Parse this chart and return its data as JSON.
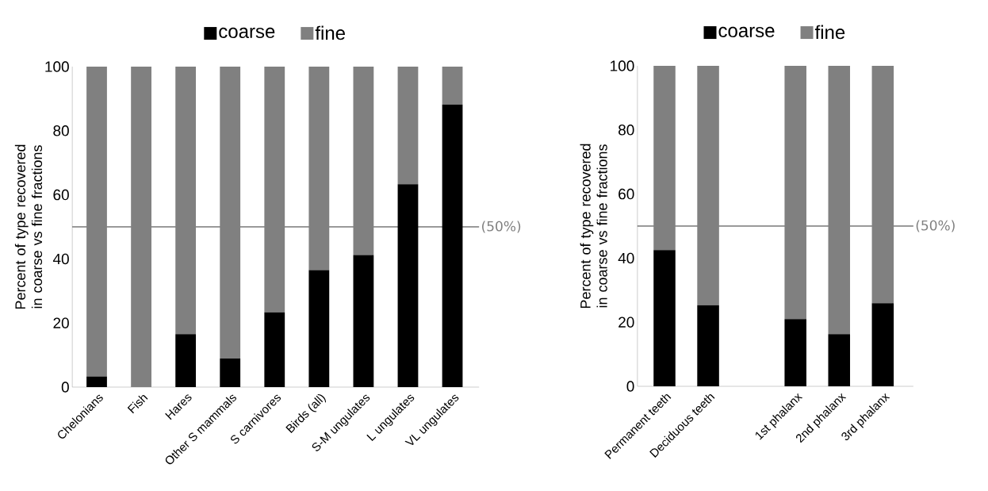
{
  "chart_data": [
    {
      "type": "bar",
      "stacked": true,
      "ylabel": "Percent of type recovered in coarse vs fine fractions",
      "categories": [
        "Chelonians",
        "Fish",
        "Hares",
        "Other S mammals",
        "S carnivores",
        "Birds (all)",
        "S-M ungulates",
        "L ungulates",
        "VL ungulates"
      ],
      "series": [
        {
          "name": "coarse",
          "color": "#000000",
          "values": [
            3.3,
            0,
            16.5,
            8.9,
            23.3,
            36.5,
            41.2,
            63.3,
            88.2
          ]
        },
        {
          "name": "fine",
          "color": "#808080",
          "values": [
            96.7,
            100,
            83.5,
            91.1,
            76.7,
            63.5,
            58.8,
            36.7,
            11.8
          ]
        }
      ],
      "ylim": [
        0,
        100
      ],
      "yticks": [
        0,
        20,
        40,
        60,
        80,
        100
      ],
      "legend": "top",
      "ref_lines": [
        {
          "axis": "y",
          "value": 50,
          "label": "(50%)",
          "color": "#000000"
        }
      ]
    },
    {
      "type": "bar",
      "stacked": true,
      "ylabel": "Percent of type recovered in coarse vs fine fractions",
      "categories": [
        "Permanent teeth",
        "Deciduous teeth",
        null,
        "1st phalanx",
        "2nd phalanx",
        "3rd phalanx"
      ],
      "series": [
        {
          "name": "coarse",
          "color": "#000000",
          "values": [
            42.5,
            25.3,
            null,
            21.0,
            16.3,
            25.9
          ]
        },
        {
          "name": "fine",
          "color": "#808080",
          "values": [
            57.5,
            74.7,
            null,
            79.0,
            83.7,
            74.1
          ]
        }
      ],
      "ylim": [
        0,
        100
      ],
      "yticks": [
        0,
        20,
        40,
        60,
        80,
        100
      ],
      "legend": "top",
      "ref_lines": [
        {
          "axis": "y",
          "value": 50,
          "label": "(50%)",
          "color": "#000000"
        }
      ]
    }
  ]
}
